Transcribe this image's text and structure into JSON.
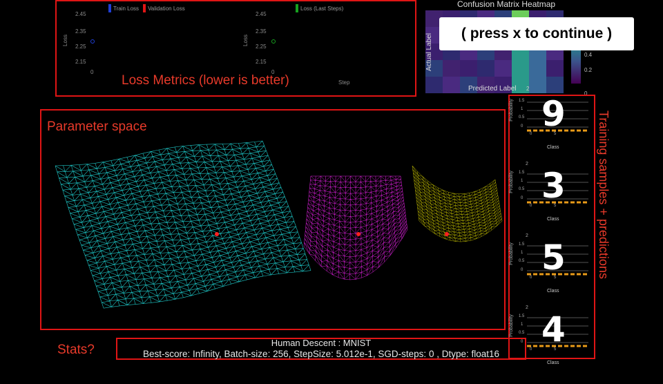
{
  "loss_panel": {
    "caption": "Loss Metrics (lower is better)",
    "left_chart": {
      "legend": [
        {
          "label": "Train Loss",
          "color": "#1f3fd6"
        },
        {
          "label": "Validation Loss",
          "color": "#e01515"
        }
      ],
      "ylabel": "Loss",
      "y_ticks": [
        "2.45",
        "2.35",
        "2.25",
        "2.15"
      ],
      "x_tick": "0",
      "point_color": "#1f3fd6"
    },
    "right_chart": {
      "legend": [
        {
          "label": "Loss (Last Steps)",
          "color": "#17a01f"
        }
      ],
      "ylabel": "Loss",
      "y_ticks": [
        "2.45",
        "2.35",
        "2.25",
        "2.15"
      ],
      "x_tick": "0",
      "xlabel": "Step",
      "point_color": "#17a01f"
    }
  },
  "confusion_matrix": {
    "title": "Confusion Matrix Heatmap",
    "ylabel": "Actual Label",
    "xlabel": "Predicted Label",
    "x_tick": "2",
    "colorbar_ticks": [
      "0.4",
      "0.2",
      "0"
    ]
  },
  "overlay": {
    "text": "( press x to continue )"
  },
  "parameter_space": {
    "title": "Parameter space",
    "surfaces": [
      {
        "name": "large-surface",
        "color": "#1ec8c8"
      },
      {
        "name": "magenta-surface",
        "color": "#e020e0"
      },
      {
        "name": "yellow-surface",
        "color": "#b8b400"
      }
    ],
    "marker_color": "#ff2020"
  },
  "samples": {
    "side_label": "Training samples + predictions",
    "items": [
      {
        "digit": "9",
        "ylabel": "Probability",
        "xlabel": "Class",
        "y_ticks": [
          "1.5",
          "1",
          "0.5",
          "0"
        ],
        "x_ticks": [
          "0",
          "5"
        ],
        "top_tick": ""
      },
      {
        "digit": "3",
        "ylabel": "Probability",
        "xlabel": "Class",
        "y_ticks": [
          "1.5",
          "1",
          "0.5",
          "0"
        ],
        "x_ticks": [
          "0",
          "5"
        ],
        "top_tick": "2"
      },
      {
        "digit": "5",
        "ylabel": "Probability",
        "xlabel": "Class",
        "y_ticks": [
          "1.5",
          "1",
          "0.5",
          "0"
        ],
        "x_ticks": [
          "0",
          "5"
        ],
        "top_tick": "2"
      },
      {
        "digit": "4",
        "ylabel": "Probability",
        "xlabel": "Class",
        "y_ticks": [
          "1.5",
          "1",
          "0.5",
          "0"
        ],
        "x_ticks": [
          "0",
          "5"
        ],
        "top_tick": "2"
      }
    ]
  },
  "stats": {
    "label": "Stats?",
    "title": "Human Descent : MNIST",
    "line": "Best-score: Infinity, Batch-size: 256, StepSize: 5.012e-1, SGD-steps: 0 , Dtype: float16"
  }
}
